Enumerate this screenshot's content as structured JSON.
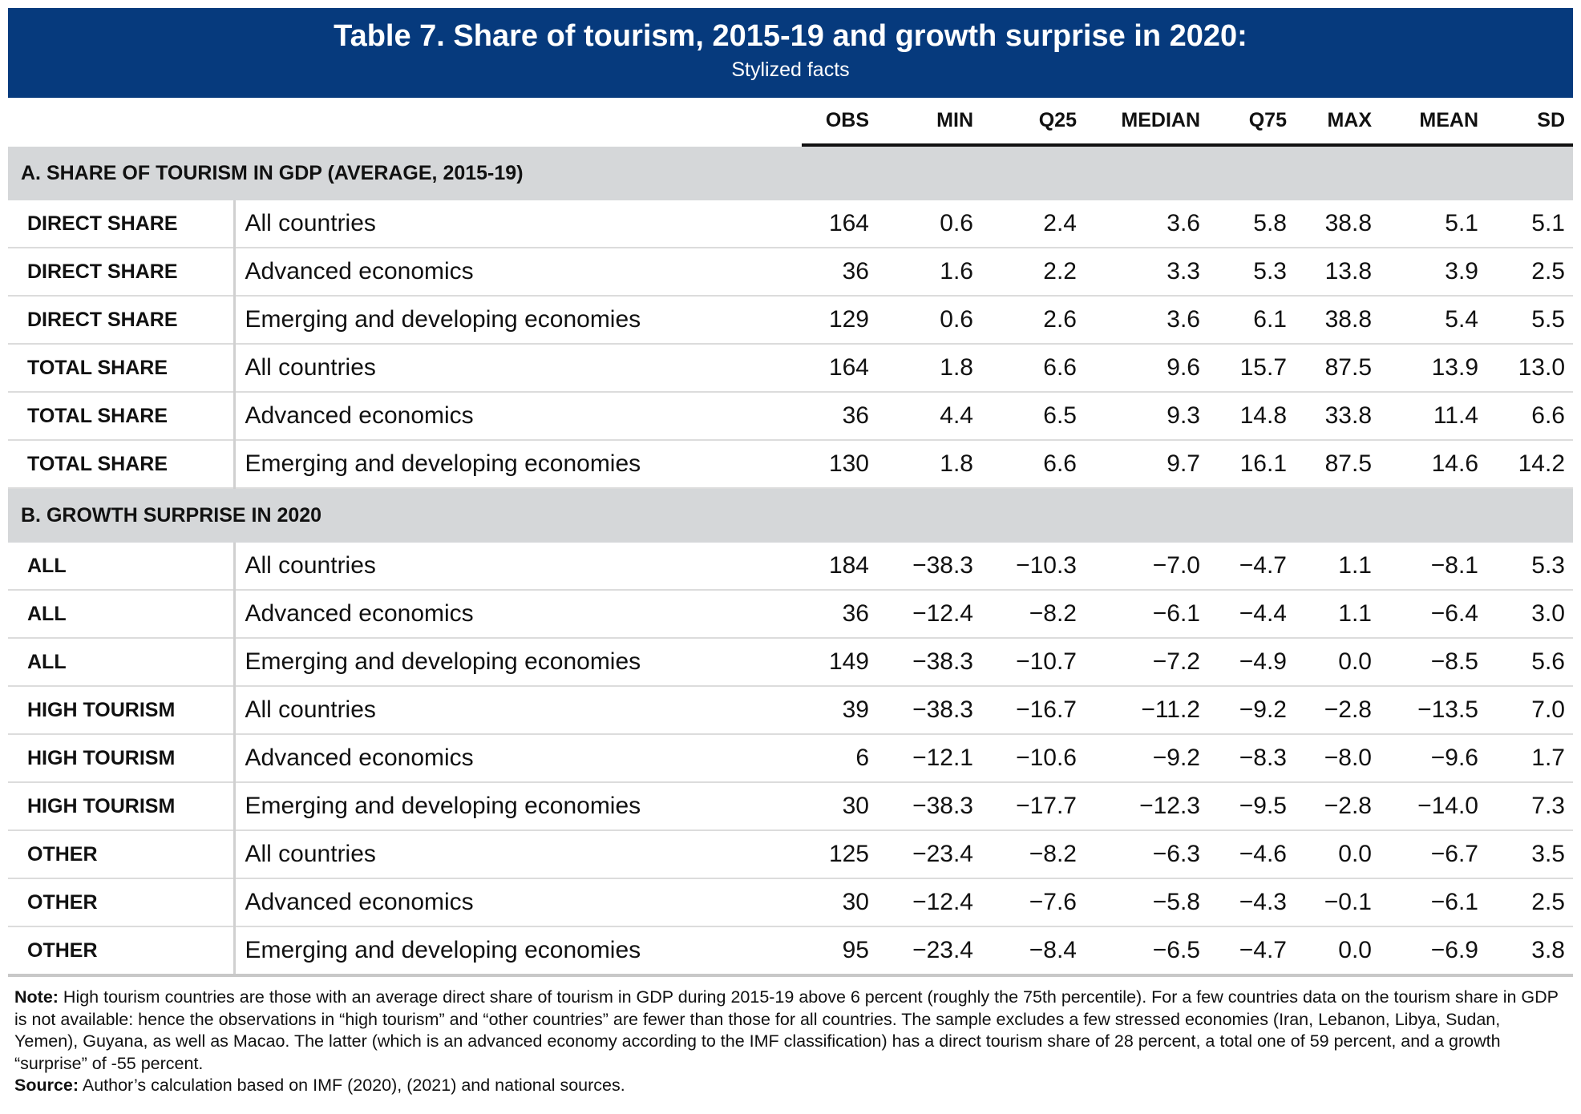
{
  "header": {
    "title": "Table 7. Share of tourism, 2015-19 and growth surprise in 2020:",
    "subtitle": "Stylized facts"
  },
  "table": {
    "columns": [
      "OBS",
      "MIN",
      "Q25",
      "MEDIAN",
      "Q75",
      "MAX",
      "MEAN",
      "SD"
    ],
    "sections": [
      {
        "title": "A. SHARE OF TOURISM IN GDP (AVERAGE, 2015-19)",
        "rows": [
          {
            "group": "DIRECT SHARE",
            "label": "All countries",
            "cells": [
              "164",
              "0.6",
              "2.4",
              "3.6",
              "5.8",
              "38.8",
              "5.1",
              "5.1"
            ]
          },
          {
            "group": "DIRECT SHARE",
            "label": "Advanced economics",
            "cells": [
              "36",
              "1.6",
              "2.2",
              "3.3",
              "5.3",
              "13.8",
              "3.9",
              "2.5"
            ]
          },
          {
            "group": "DIRECT SHARE",
            "label": "Emerging and developing economies",
            "cells": [
              "129",
              "0.6",
              "2.6",
              "3.6",
              "6.1",
              "38.8",
              "5.4",
              "5.5"
            ]
          },
          {
            "group": "TOTAL SHARE",
            "label": "All countries",
            "cells": [
              "164",
              "1.8",
              "6.6",
              "9.6",
              "15.7",
              "87.5",
              "13.9",
              "13.0"
            ]
          },
          {
            "group": "TOTAL SHARE",
            "label": "Advanced economics",
            "cells": [
              "36",
              "4.4",
              "6.5",
              "9.3",
              "14.8",
              "33.8",
              "11.4",
              "6.6"
            ]
          },
          {
            "group": "TOTAL SHARE",
            "label": "Emerging and developing economies",
            "cells": [
              "130",
              "1.8",
              "6.6",
              "9.7",
              "16.1",
              "87.5",
              "14.6",
              "14.2"
            ]
          }
        ]
      },
      {
        "title": "B. GROWTH SURPRISE IN 2020",
        "rows": [
          {
            "group": "ALL",
            "label": "All countries",
            "cells": [
              "184",
              "−38.3",
              "−10.3",
              "−7.0",
              "−4.7",
              "1.1",
              "−8.1",
              "5.3"
            ]
          },
          {
            "group": "ALL",
            "label": "Advanced economics",
            "cells": [
              "36",
              "−12.4",
              "−8.2",
              "−6.1",
              "−4.4",
              "1.1",
              "−6.4",
              "3.0"
            ]
          },
          {
            "group": "ALL",
            "label": "Emerging and developing economies",
            "cells": [
              "149",
              "−38.3",
              "−10.7",
              "−7.2",
              "−4.9",
              "0.0",
              "−8.5",
              "5.6"
            ]
          },
          {
            "group": "HIGH TOURISM",
            "label": "All countries",
            "cells": [
              "39",
              "−38.3",
              "−16.7",
              "−11.2",
              "−9.2",
              "−2.8",
              "−13.5",
              "7.0"
            ]
          },
          {
            "group": "HIGH TOURISM",
            "label": "Advanced economics",
            "cells": [
              "6",
              "−12.1",
              "−10.6",
              "−9.2",
              "−8.3",
              "−8.0",
              "−9.6",
              "1.7"
            ]
          },
          {
            "group": "HIGH TOURISM",
            "label": "Emerging and developing economies",
            "cells": [
              "30",
              "−38.3",
              "−17.7",
              "−12.3",
              "−9.5",
              "−2.8",
              "−14.0",
              "7.3"
            ]
          },
          {
            "group": "OTHER",
            "label": "All countries",
            "cells": [
              "125",
              "−23.4",
              "−8.2",
              "−6.3",
              "−4.6",
              "0.0",
              "−6.7",
              "3.5"
            ]
          },
          {
            "group": "OTHER",
            "label": "Advanced economics",
            "cells": [
              "30",
              "−12.4",
              "−7.6",
              "−5.8",
              "−4.3",
              "−0.1",
              "−6.1",
              "2.5"
            ]
          },
          {
            "group": "OTHER",
            "label": "Emerging and developing economies",
            "cells": [
              "95",
              "−23.4",
              "−8.4",
              "−6.5",
              "−4.7",
              "0.0",
              "−6.9",
              "3.8"
            ]
          }
        ]
      }
    ]
  },
  "note": {
    "label": "Note:",
    "text": "High tourism countries are those with an average direct share of tourism in GDP during 2015-19 above 6 percent (roughly the 75th percentile). For a few countries data on the tourism share in GDP is not available: hence the observations in “high tourism” and “other countries” are fewer than those for all countries. The sample excludes a few stressed economies (Iran, Lebanon, Libya, Sudan, Yemen), Guyana, as well as Macao. The latter (which is an advanced economy according to the IMF classification) has a direct tourism share of 28 percent, a total one of 59 percent, and a growth “surprise” of -55 percent."
  },
  "source": {
    "label": "Source:",
    "text": "Author’s calculation based on IMF (2020), (2021) and national sources."
  }
}
